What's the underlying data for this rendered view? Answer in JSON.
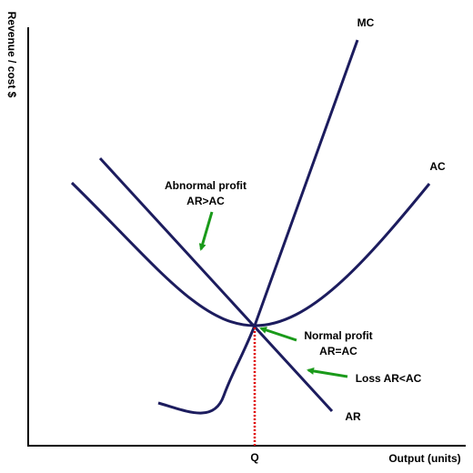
{
  "axes": {
    "y_label": "Revenue / cost $",
    "x_label": "Output (units)",
    "x_marker": "Q"
  },
  "curves": {
    "mc": "MC",
    "ac": "AC",
    "ar": "AR"
  },
  "annotations": {
    "abnormal_profit": [
      "Abnormal profit",
      "AR>AC"
    ],
    "normal_profit": [
      "Normal profit",
      "AR=AC"
    ],
    "loss": "Loss AR<AC"
  }
}
